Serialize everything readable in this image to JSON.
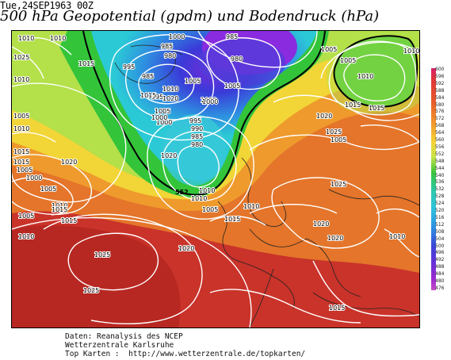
{
  "header": {
    "timestamp": "Tue,24SEP1963 00Z",
    "title": "500 hPa Geopotential (gpdm) und Bodendruck (hPa)"
  },
  "colorbar": {
    "min": 476,
    "max": 600,
    "step": 4,
    "ticks": [
      "600",
      "596",
      "592",
      "588",
      "584",
      "580",
      "576",
      "572",
      "568",
      "564",
      "560",
      "556",
      "552",
      "548",
      "544",
      "540",
      "536",
      "532",
      "528",
      "524",
      "520",
      "516",
      "512",
      "508",
      "504",
      "500",
      "496",
      "492",
      "488",
      "484",
      "480",
      "476"
    ]
  },
  "map_labels": {
    "isobars": [
      "1010",
      "1025",
      "1015",
      "1010",
      "1005",
      "1010",
      "1015",
      "1020",
      "1015",
      "1005",
      "1000",
      "1005",
      "1010",
      "1005",
      "1015",
      "1010",
      "1025",
      "1025",
      "1020",
      "1000",
      "985",
      "980",
      "985",
      "995",
      "995",
      "1005",
      "1010",
      "1015",
      "1020",
      "1000",
      "985",
      "980",
      "1005",
      "1000",
      "995",
      "990",
      "985",
      "980",
      "1000",
      "1010",
      "1005",
      "1005",
      "1010",
      "1015",
      "1010",
      "1015",
      "1020",
      "1025",
      "1020",
      "1025",
      "1010",
      "1020",
      "1015",
      "1010",
      "1015",
      "1010",
      "1005",
      "1000",
      "1015",
      "1020",
      "1005",
      "1005",
      "1010"
    ],
    "height_552": "552"
  },
  "credits": {
    "line1": "Daten: Reanalysis des NCEP",
    "line2": "Wetterzentrale Karlsruhe",
    "line3": "Top Karten :  http://www.wetterzentrale.de/topkarten/"
  }
}
